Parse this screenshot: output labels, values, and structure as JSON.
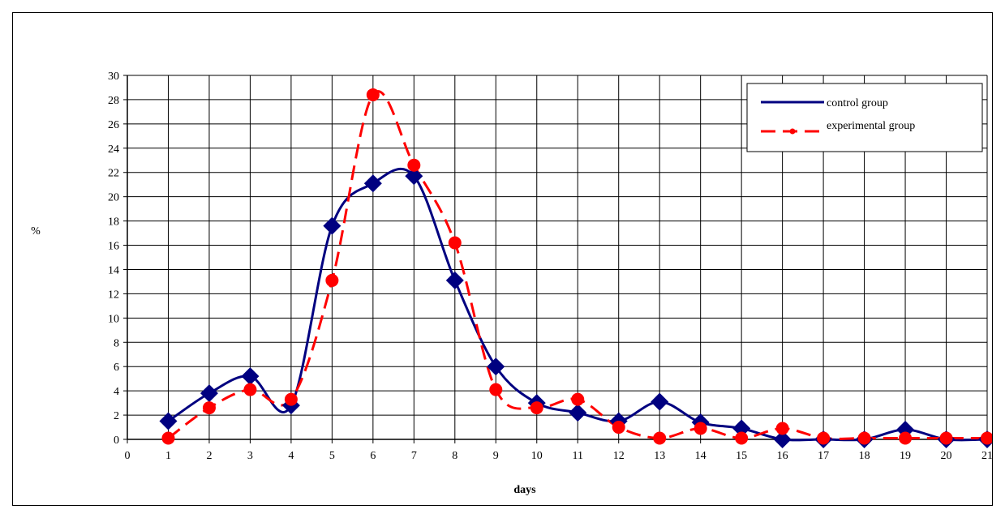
{
  "chart_data": {
    "type": "line",
    "title": "",
    "xlabel": "days",
    "ylabel": "%",
    "xlim": [
      0,
      21
    ],
    "ylim": [
      0,
      30
    ],
    "x_ticks": [
      "0",
      "1",
      "2",
      "3",
      "4",
      "5",
      "6",
      "7",
      "8",
      "9",
      "10",
      "11",
      "12",
      "13",
      "14",
      "15",
      "16",
      "17",
      "18",
      "19",
      "20",
      "21"
    ],
    "y_ticks": [
      "0",
      "2",
      "4",
      "6",
      "8",
      "10",
      "12",
      "14",
      "16",
      "18",
      "20",
      "22",
      "24",
      "26",
      "28",
      "30"
    ],
    "grid": true,
    "smoothed": true,
    "legend_position": "top-right",
    "series": [
      {
        "name": "control group",
        "color": "#000080",
        "line_style": "solid",
        "marker": "diamond",
        "x": [
          1,
          2,
          3,
          4,
          5,
          6,
          7,
          8,
          9,
          10,
          11,
          12,
          13,
          14,
          15,
          16,
          17,
          18,
          19,
          20,
          21
        ],
        "y": [
          1.5,
          3.8,
          5.2,
          2.8,
          17.6,
          21.1,
          21.7,
          13.1,
          6.0,
          3.0,
          2.2,
          1.5,
          3.1,
          1.4,
          0.9,
          0,
          0,
          0,
          0.8,
          0,
          0
        ]
      },
      {
        "name": "experimental group",
        "color": "#ff0000",
        "line_style": "dashed",
        "marker": "circle",
        "x": [
          1,
          2,
          3,
          4,
          5,
          6,
          7,
          8,
          9,
          10,
          11,
          12,
          13,
          14,
          15,
          16,
          17,
          18,
          19,
          20,
          21
        ],
        "y": [
          0.1,
          2.6,
          4.1,
          3.3,
          13.1,
          28.4,
          22.6,
          16.2,
          4.1,
          2.6,
          3.3,
          1.0,
          0.1,
          0.9,
          0.1,
          0.9,
          0.1,
          0.1,
          0.1,
          0.1,
          0.1
        ]
      }
    ]
  }
}
